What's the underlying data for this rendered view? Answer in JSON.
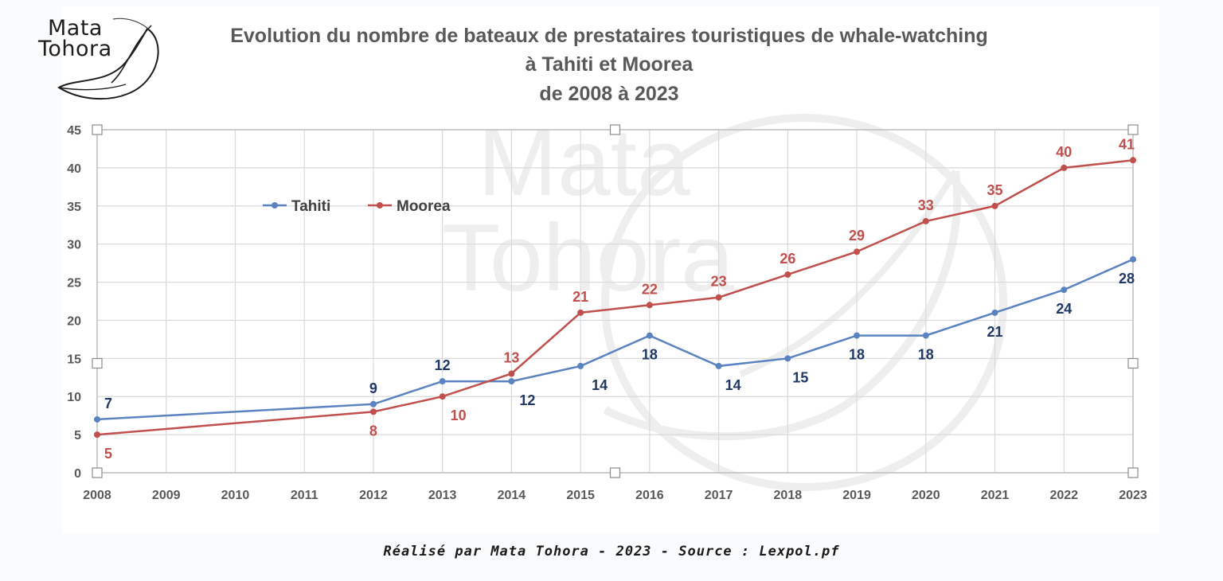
{
  "logo": {
    "line1": "Mata",
    "line2": "Tohora"
  },
  "watermark": {
    "line1": "Mata",
    "line2": "Tohora"
  },
  "chart_data": {
    "type": "line",
    "title_lines": [
      "Evolution du nombre de bateaux de prestataires touristiques de whale-watching",
      "à Tahiti et Moorea",
      "de 2008 à 2023"
    ],
    "xlabel": "",
    "ylabel": "",
    "categories": [
      "2008",
      "2009",
      "2010",
      "2011",
      "2012",
      "2013",
      "2014",
      "2015",
      "2016",
      "2017",
      "2018",
      "2019",
      "2020",
      "2021",
      "2022",
      "2023"
    ],
    "ylim": [
      0,
      45
    ],
    "yticks": [
      0,
      5,
      10,
      15,
      20,
      25,
      30,
      35,
      40,
      45
    ],
    "grid": true,
    "legend_position": "top-left",
    "series": [
      {
        "name": "Tahiti",
        "color": "#5b82c1",
        "label_color": "#1f3864",
        "x": [
          "2008",
          "2012",
          "2013",
          "2014",
          "2015",
          "2016",
          "2017",
          "2018",
          "2019",
          "2020",
          "2021",
          "2022",
          "2023"
        ],
        "values": [
          7,
          9,
          12,
          12,
          14,
          18,
          14,
          15,
          18,
          18,
          21,
          24,
          28
        ]
      },
      {
        "name": "Moorea",
        "color": "#c0504d",
        "label_color": "#c0504d",
        "x": [
          "2008",
          "2012",
          "2013",
          "2014",
          "2015",
          "2016",
          "2017",
          "2018",
          "2019",
          "2020",
          "2021",
          "2022",
          "2023"
        ],
        "values": [
          5,
          8,
          10,
          13,
          21,
          22,
          23,
          26,
          29,
          33,
          35,
          40,
          41
        ]
      }
    ]
  },
  "footer": "Réalisé par Mata Tohora - 2023 - Source : Lexpol.pf"
}
